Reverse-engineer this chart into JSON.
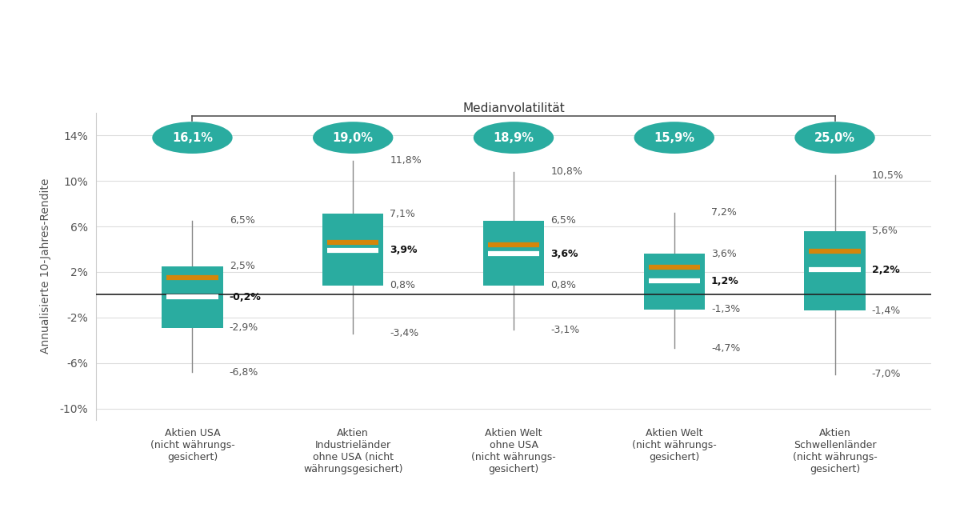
{
  "categories": [
    "Aktien USA\n(nicht währungs-\ngesichert)",
    "Aktien\nIndustrieländer\nohne USA (nicht\nwährungsgesichert)",
    "Aktien Welt\nohne USA\n(nicht währungs-\ngesichert)",
    "Aktien Welt\n(nicht währungs-\ngesichert)",
    "Aktien\nSchwellenländer\n(nicht währungs-\ngesichert)"
  ],
  "volatility_labels": [
    "16,1%",
    "19,0%",
    "18,9%",
    "15,9%",
    "25,0%"
  ],
  "box_q1": [
    -2.9,
    0.8,
    0.8,
    -1.3,
    -1.4
  ],
  "box_q3": [
    2.5,
    7.1,
    6.5,
    3.6,
    5.6
  ],
  "whisker_low": [
    -6.8,
    -3.4,
    -3.1,
    -4.7,
    -7.0
  ],
  "whisker_high": [
    6.5,
    11.8,
    10.8,
    7.2,
    10.5
  ],
  "median_white": [
    -0.2,
    3.9,
    3.6,
    1.2,
    2.2
  ],
  "median_orange": [
    1.5,
    4.6,
    4.4,
    2.4,
    3.8
  ],
  "median_labels": [
    "-0,2%",
    "3,9%",
    "3,6%",
    "1,2%",
    "2,2%"
  ],
  "box_color": "#2AACA0",
  "whisker_color": "#888888",
  "median_white_color": "#FFFFFF",
  "median_orange_color": "#D4860A",
  "volatility_bg_color": "#2AACA0",
  "volatility_text_color": "#FFFFFF",
  "ylabel": "Annualisierte 10-Jahres-Rendite",
  "ylim": [
    -11,
    16
  ],
  "yticks": [
    -10,
    -6,
    -2,
    2,
    6,
    10,
    14
  ],
  "ytick_labels": [
    "-10%",
    "-6%",
    "-2%",
    "2%",
    "6%",
    "10%",
    "14%"
  ],
  "zero_line_color": "#222222",
  "background_color": "#FFFFFF",
  "medianvolatility_label": "Medianvolatilität",
  "annotation_fontsize": 9,
  "volatility_fontsize": 10.5
}
